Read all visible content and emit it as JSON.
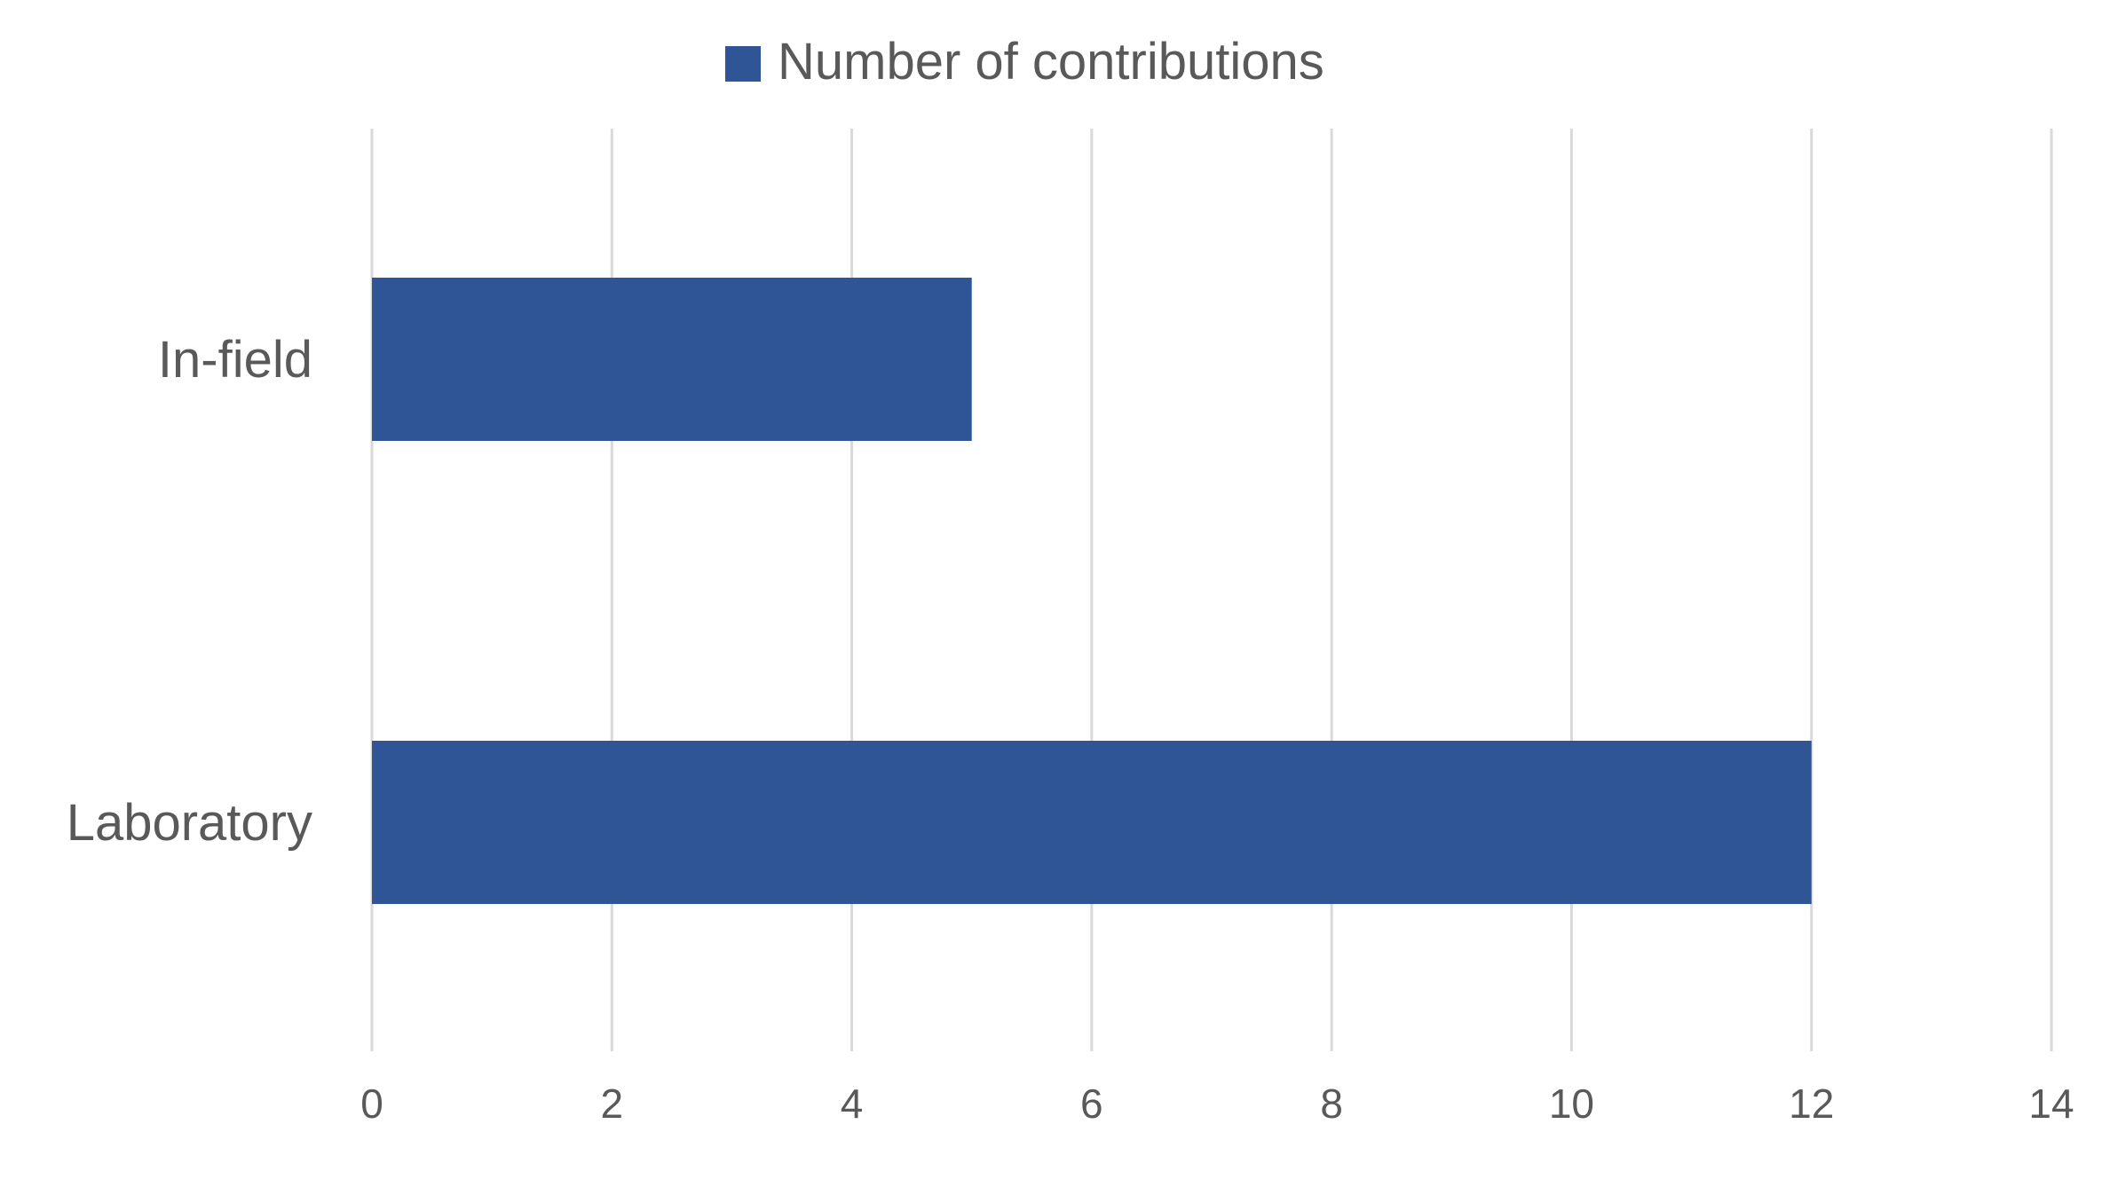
{
  "chart_data": {
    "type": "bar",
    "orientation": "horizontal",
    "categories": [
      "In-field",
      "Laboratory"
    ],
    "series": [
      {
        "name": "Number of contributions",
        "values": [
          5,
          12
        ]
      }
    ],
    "title": "",
    "xlabel": "",
    "ylabel": "",
    "xlim": [
      0,
      14
    ],
    "x_ticks": [
      0,
      2,
      4,
      6,
      8,
      10,
      12,
      14
    ],
    "grid": "vertical",
    "legend": "top-center",
    "colors": {
      "bar": "#2F5597",
      "grid": "#D9D9D9",
      "text": "#595959"
    }
  }
}
